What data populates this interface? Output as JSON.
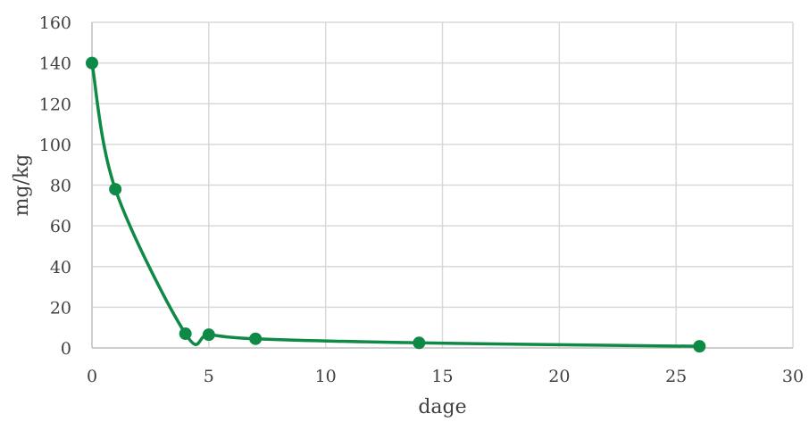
{
  "chart_data": {
    "type": "scatter",
    "title": "",
    "xlabel": "dage",
    "ylabel": "mg/kg",
    "xlim": [
      0,
      30
    ],
    "ylim": [
      0,
      160
    ],
    "xticks": [
      0,
      5,
      10,
      15,
      20,
      25,
      30
    ],
    "yticks": [
      0,
      20,
      40,
      60,
      80,
      100,
      120,
      140,
      160
    ],
    "grid": true,
    "smooth_line": true,
    "series": [
      {
        "color": "#0e8a46",
        "x": [
          0,
          1,
          4,
          5,
          7,
          14,
          26
        ],
        "y": [
          140,
          78,
          7,
          6.5,
          4.5,
          2.5,
          0.8
        ]
      }
    ]
  }
}
